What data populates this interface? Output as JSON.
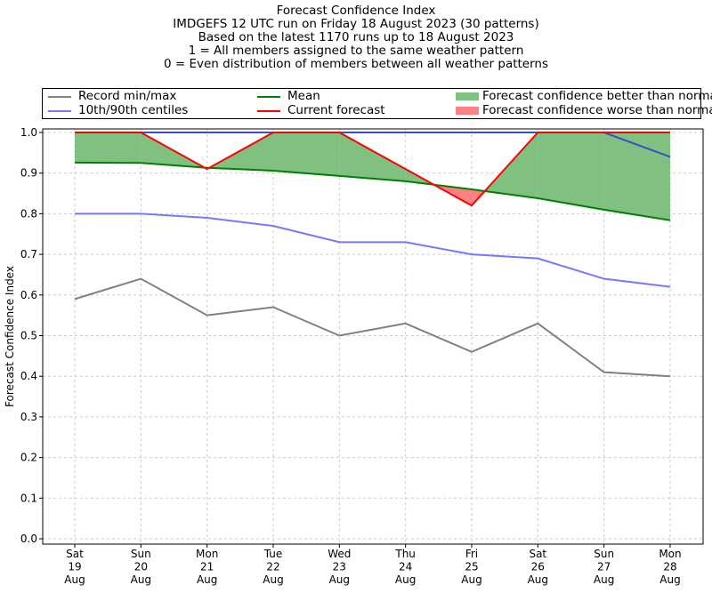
{
  "chart_data": {
    "type": "line",
    "title_lines": [
      "Forecast Confidence Index",
      "IMDGEFS 12 UTC run on Friday 18 August 2023 (30 patterns)",
      "Based on the latest 1170 runs up to 18 August 2023",
      "1 = All members assigned to the same weather pattern",
      "0 = Even distribution of members between all weather patterns"
    ],
    "xlabel": "",
    "ylabel": "Forecast Confidence Index",
    "ylim": [
      -0.01,
      1.01
    ],
    "yticks": [
      "0.0",
      "0.1",
      "0.2",
      "0.3",
      "0.4",
      "0.5",
      "0.6",
      "0.7",
      "0.8",
      "0.9",
      "1.0"
    ],
    "categories": [
      [
        "Sat",
        "19",
        "Aug"
      ],
      [
        "Sun",
        "20",
        "Aug"
      ],
      [
        "Mon",
        "21",
        "Aug"
      ],
      [
        "Tue",
        "22",
        "Aug"
      ],
      [
        "Wed",
        "23",
        "Aug"
      ],
      [
        "Thu",
        "24",
        "Aug"
      ],
      [
        "Fri",
        "25",
        "Aug"
      ],
      [
        "Sat",
        "26",
        "Aug"
      ],
      [
        "Sun",
        "27",
        "Aug"
      ],
      [
        "Mon",
        "28",
        "Aug"
      ]
    ],
    "grid": true,
    "legend_position": "top (above plot)",
    "legend": {
      "record": "Record min/max",
      "centiles": "10th/90th centiles",
      "mean": "Mean",
      "current": "Current forecast",
      "better": "Forecast confidence better than normal",
      "worse": "Forecast confidence worse than normal"
    },
    "series": [
      {
        "name": "Record min",
        "color": "#808080",
        "values": [
          0.59,
          0.64,
          0.55,
          0.57,
          0.5,
          0.53,
          0.46,
          0.53,
          0.41,
          0.4
        ]
      },
      {
        "name": "Record max",
        "color": "#808080",
        "values": [
          1,
          1,
          1,
          1,
          1,
          1,
          1,
          1,
          1,
          1
        ]
      },
      {
        "name": "10th centile",
        "color": "#7878ff",
        "values": [
          0.8,
          0.8,
          0.79,
          0.77,
          0.73,
          0.73,
          0.7,
          0.69,
          0.64,
          0.62
        ]
      },
      {
        "name": "90th centile",
        "color": "#3a50c8",
        "values": [
          1,
          1,
          1,
          1,
          1,
          1,
          1,
          1,
          1,
          0.94
        ]
      },
      {
        "name": "Mean",
        "color": "#008000",
        "values": [
          0.926,
          0.925,
          0.913,
          0.906,
          0.893,
          0.88,
          0.86,
          0.838,
          0.81,
          0.784
        ]
      },
      {
        "name": "Current forecast",
        "color": "#ff0000",
        "values": [
          1,
          1,
          0.91,
          1,
          1,
          0.91,
          0.82,
          1,
          1,
          1
        ]
      }
    ],
    "colors": {
      "better": "#80c080",
      "worse": "#ff8080"
    }
  }
}
